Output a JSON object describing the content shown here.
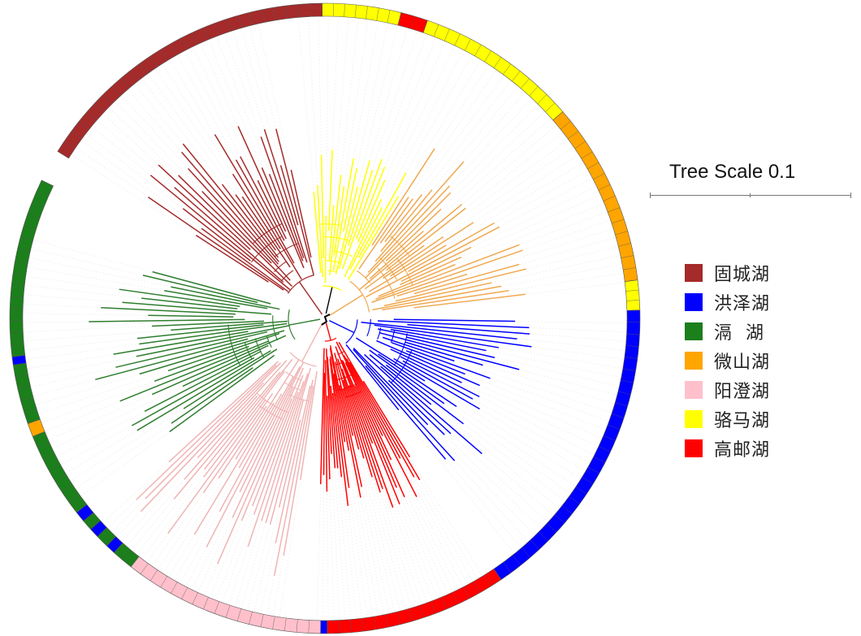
{
  "scale": {
    "label": "Tree Scale 0.1",
    "value": 0.1
  },
  "legend": [
    {
      "label": "固城湖",
      "color": "#A52A2A"
    },
    {
      "label": "洪泽湖",
      "color": "#0000FF"
    },
    {
      "label": "滆  湖",
      "color": "#1B7F1B"
    },
    {
      "label": "微山湖",
      "color": "#FFA500"
    },
    {
      "label": "阳澄湖",
      "color": "#FFC0CB"
    },
    {
      "label": "骆马湖",
      "color": "#FFFF00"
    },
    {
      "label": "高邮湖",
      "color": "#FF0000"
    }
  ],
  "tree": {
    "layout": "circular",
    "ring_colors": {
      "固城湖": "#A52A2A",
      "洪泽湖": "#0000FF",
      "滆  湖": "#1B7F1B",
      "微山湖": "#FFA500",
      "阳澄湖": "#FFC0CB",
      "骆马湖": "#FFFF00",
      "高邮湖": "#FF0000"
    },
    "clades": [
      {
        "group": "骆马湖",
        "branch_color": "#FFFF00",
        "leaf_count": 20
      },
      {
        "group": "微山湖",
        "branch_color": "#F0A850",
        "leaf_count": 30
      },
      {
        "group": "洪泽湖",
        "branch_color": "#0000FF",
        "leaf_count": 30
      },
      {
        "group": "高邮湖",
        "branch_color": "#FF0000",
        "leaf_count": 32
      },
      {
        "group": "阳澄湖",
        "branch_color": "#F0B4B4",
        "leaf_count": 32
      },
      {
        "group": "滆  湖",
        "branch_color": "#2E7D2E",
        "leaf_count": 30
      },
      {
        "group": "固城湖",
        "branch_color": "#A52A2A",
        "leaf_count": 28
      }
    ]
  }
}
